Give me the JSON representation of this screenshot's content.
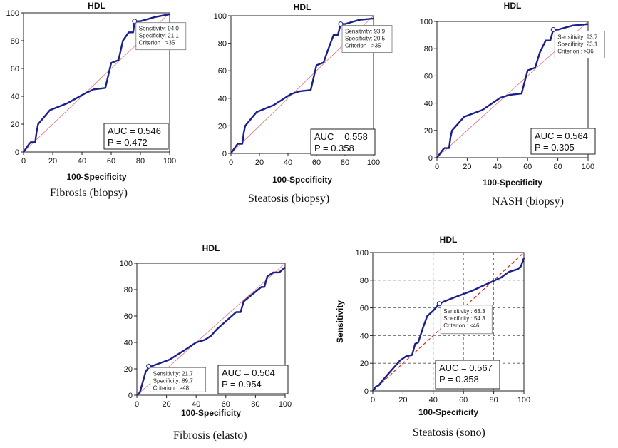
{
  "chart_data": [
    {
      "type": "line",
      "variant": "roc",
      "title": "HDL",
      "caption": "Fibrosis (biopsy)",
      "xlabel": "100-Specificity",
      "ylabel": "",
      "xlim": [
        0,
        100
      ],
      "ylim": [
        0,
        100
      ],
      "xticks": [
        0,
        20,
        40,
        60,
        80,
        100
      ],
      "yticks": [
        0,
        20,
        40,
        60,
        80,
        100
      ],
      "grid": false,
      "roc_x": [
        0,
        2,
        4,
        5,
        8,
        9,
        10,
        14,
        18,
        30,
        42,
        48,
        56,
        60,
        65,
        68,
        72,
        75,
        76,
        80,
        90,
        100
      ],
      "roc_y": [
        0,
        3,
        6,
        7,
        7,
        15,
        20,
        25,
        30,
        35,
        42,
        45,
        46,
        64,
        66,
        80,
        86,
        86,
        94,
        94,
        97,
        99
      ],
      "operating_point": {
        "x": 76,
        "y": 94
      },
      "annotation": [
        "Sensitivity: 94.0",
        "Specificity: 21.1",
        "Criterion : >35"
      ],
      "auc_text": "AUC = 0.546",
      "p_text": "P = 0.472"
    },
    {
      "type": "line",
      "variant": "roc",
      "title": "HDL",
      "caption": "Steatosis (biopsy)",
      "xlabel": "100-Specificity",
      "ylabel": "",
      "xlim": [
        0,
        100
      ],
      "ylim": [
        0,
        100
      ],
      "xticks": [
        0,
        20,
        40,
        60,
        80,
        100
      ],
      "yticks": [
        0,
        20,
        40,
        60,
        80,
        100
      ],
      "grid": false,
      "roc_x": [
        0,
        2,
        4,
        5,
        8,
        9,
        10,
        14,
        18,
        30,
        42,
        48,
        56,
        60,
        65,
        68,
        72,
        75,
        77,
        80,
        90,
        100
      ],
      "roc_y": [
        0,
        3,
        6,
        7,
        7,
        15,
        20,
        25,
        30,
        35,
        43,
        45,
        46,
        64,
        66,
        75,
        86,
        86,
        94,
        94,
        97,
        98
      ],
      "operating_point": {
        "x": 77,
        "y": 94
      },
      "annotation": [
        "Sensitivity: 93.9",
        "Specificity: 20.5",
        "Criterion : >35"
      ],
      "auc_text": "AUC = 0.558",
      "p_text": "P = 0.358"
    },
    {
      "type": "line",
      "variant": "roc",
      "title": "HDL",
      "caption": "NASH (biopsy)",
      "xlabel": "100-Specificity",
      "ylabel": "",
      "xlim": [
        0,
        100
      ],
      "ylim": [
        0,
        100
      ],
      "xticks": [
        0,
        20,
        40,
        60,
        80,
        100
      ],
      "yticks": [
        0,
        20,
        40,
        60,
        80,
        100
      ],
      "grid": false,
      "roc_x": [
        0,
        2,
        4,
        5,
        8,
        9,
        10,
        14,
        18,
        30,
        42,
        48,
        56,
        60,
        65,
        68,
        72,
        75,
        77,
        80,
        90,
        100
      ],
      "roc_y": [
        0,
        3,
        6,
        7,
        7,
        15,
        20,
        25,
        30,
        35,
        44,
        46,
        47,
        64,
        66,
        77,
        86,
        86,
        94,
        94,
        97,
        98
      ],
      "operating_point": {
        "x": 77,
        "y": 94
      },
      "annotation": [
        "Sensitivity: 93.7",
        "Specificity: 23.1",
        "Criterion : >36"
      ],
      "auc_text": "AUC = 0.564",
      "p_text": "P = 0.305"
    },
    {
      "type": "line",
      "variant": "roc",
      "title": "HDL",
      "caption": "Fibrosis (elasto)",
      "xlabel": "100-Specificity",
      "ylabel": "",
      "xlim": [
        0,
        100
      ],
      "ylim": [
        0,
        100
      ],
      "xticks": [
        0,
        20,
        40,
        60,
        80,
        100
      ],
      "yticks": [
        0,
        20,
        40,
        60,
        80,
        100
      ],
      "grid": false,
      "roc_x": [
        0,
        2,
        3,
        4,
        5,
        6,
        8,
        10,
        22,
        32,
        40,
        46,
        50,
        54,
        60,
        67,
        70,
        72,
        84,
        86,
        88,
        92,
        96,
        100
      ],
      "roc_y": [
        0,
        2,
        6,
        10,
        14,
        18,
        21,
        22,
        27,
        34,
        40,
        42,
        45,
        50,
        56,
        63,
        63,
        71,
        82,
        82,
        90,
        93,
        93,
        97
      ],
      "operating_point": {
        "x": 8,
        "y": 22
      },
      "annotation": [
        "Sensitivity: 21.7",
        "Specificity: 89.7",
        "Criterion : >48"
      ],
      "auc_text": "AUC = 0.504",
      "p_text": "P = 0.954"
    },
    {
      "type": "line",
      "variant": "roc",
      "title": "HDL",
      "caption": "Steatosis (sono)",
      "xlabel": "100-Specificity",
      "ylabel": "Sensitivity",
      "xlim": [
        0,
        100
      ],
      "ylim": [
        0,
        100
      ],
      "xticks": [
        0,
        20,
        40,
        60,
        80,
        100
      ],
      "yticks": [
        0,
        20,
        40,
        60,
        80,
        100
      ],
      "grid": true,
      "roc_x": [
        0,
        2,
        4,
        6,
        10,
        14,
        18,
        22,
        26,
        28,
        30,
        33,
        36,
        40,
        44,
        48,
        55,
        65,
        75,
        85,
        90,
        96,
        98,
        100
      ],
      "roc_y": [
        0,
        3,
        4,
        7,
        12,
        17,
        22,
        25,
        26,
        34,
        35,
        45,
        54,
        58,
        63,
        65,
        68,
        72,
        77,
        82,
        86,
        88,
        90,
        96
      ],
      "operating_point": {
        "x": 44,
        "y": 63
      },
      "annotation": [
        "Sensitivity : 63.3",
        "Specificity : 54.3",
        "Criterion : ≤46"
      ],
      "auc_text": "AUC = 0.567",
      "p_text": "P = 0.358"
    }
  ]
}
